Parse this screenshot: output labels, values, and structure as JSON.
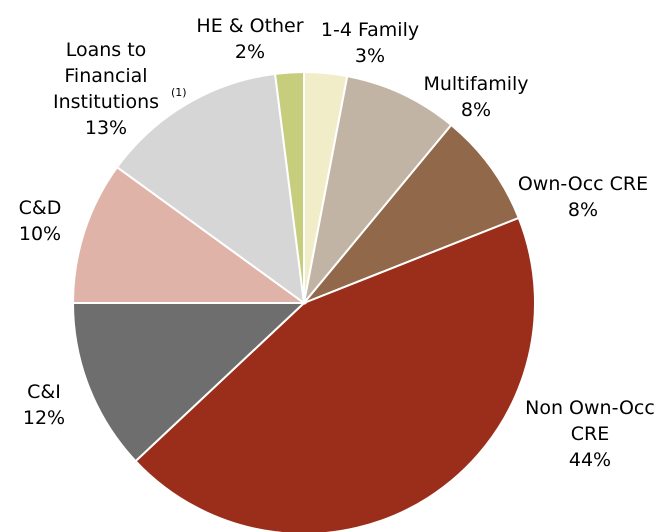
{
  "chart_data": {
    "type": "pie",
    "title": "",
    "slices": [
      {
        "label": "1-4 Family",
        "value": 3,
        "value_label": "3%",
        "color": "#f2edc9"
      },
      {
        "label": "Multifamily",
        "value": 8,
        "value_label": "8%",
        "color": "#c2b4a5"
      },
      {
        "label": "Own-Occ CRE",
        "value": 8,
        "value_label": "8%",
        "color": "#91684a"
      },
      {
        "label": "Non Own-Occ CRE",
        "value": 44,
        "value_label": "44%",
        "color": "#9a2e1b"
      },
      {
        "label": "C&I",
        "value": 12,
        "value_label": "12%",
        "color": "#6e6e6e"
      },
      {
        "label": "C&D",
        "value": 10,
        "value_label": "10%",
        "color": "#e0b3a8"
      },
      {
        "label": "Loans to Financial Institutions",
        "value": 13,
        "value_label": "13%",
        "footnote": "(1)",
        "color": "#d6d6d6"
      },
      {
        "label": "HE & Other",
        "value": 2,
        "value_label": "2%",
        "color": "#c6ce7d"
      }
    ]
  }
}
